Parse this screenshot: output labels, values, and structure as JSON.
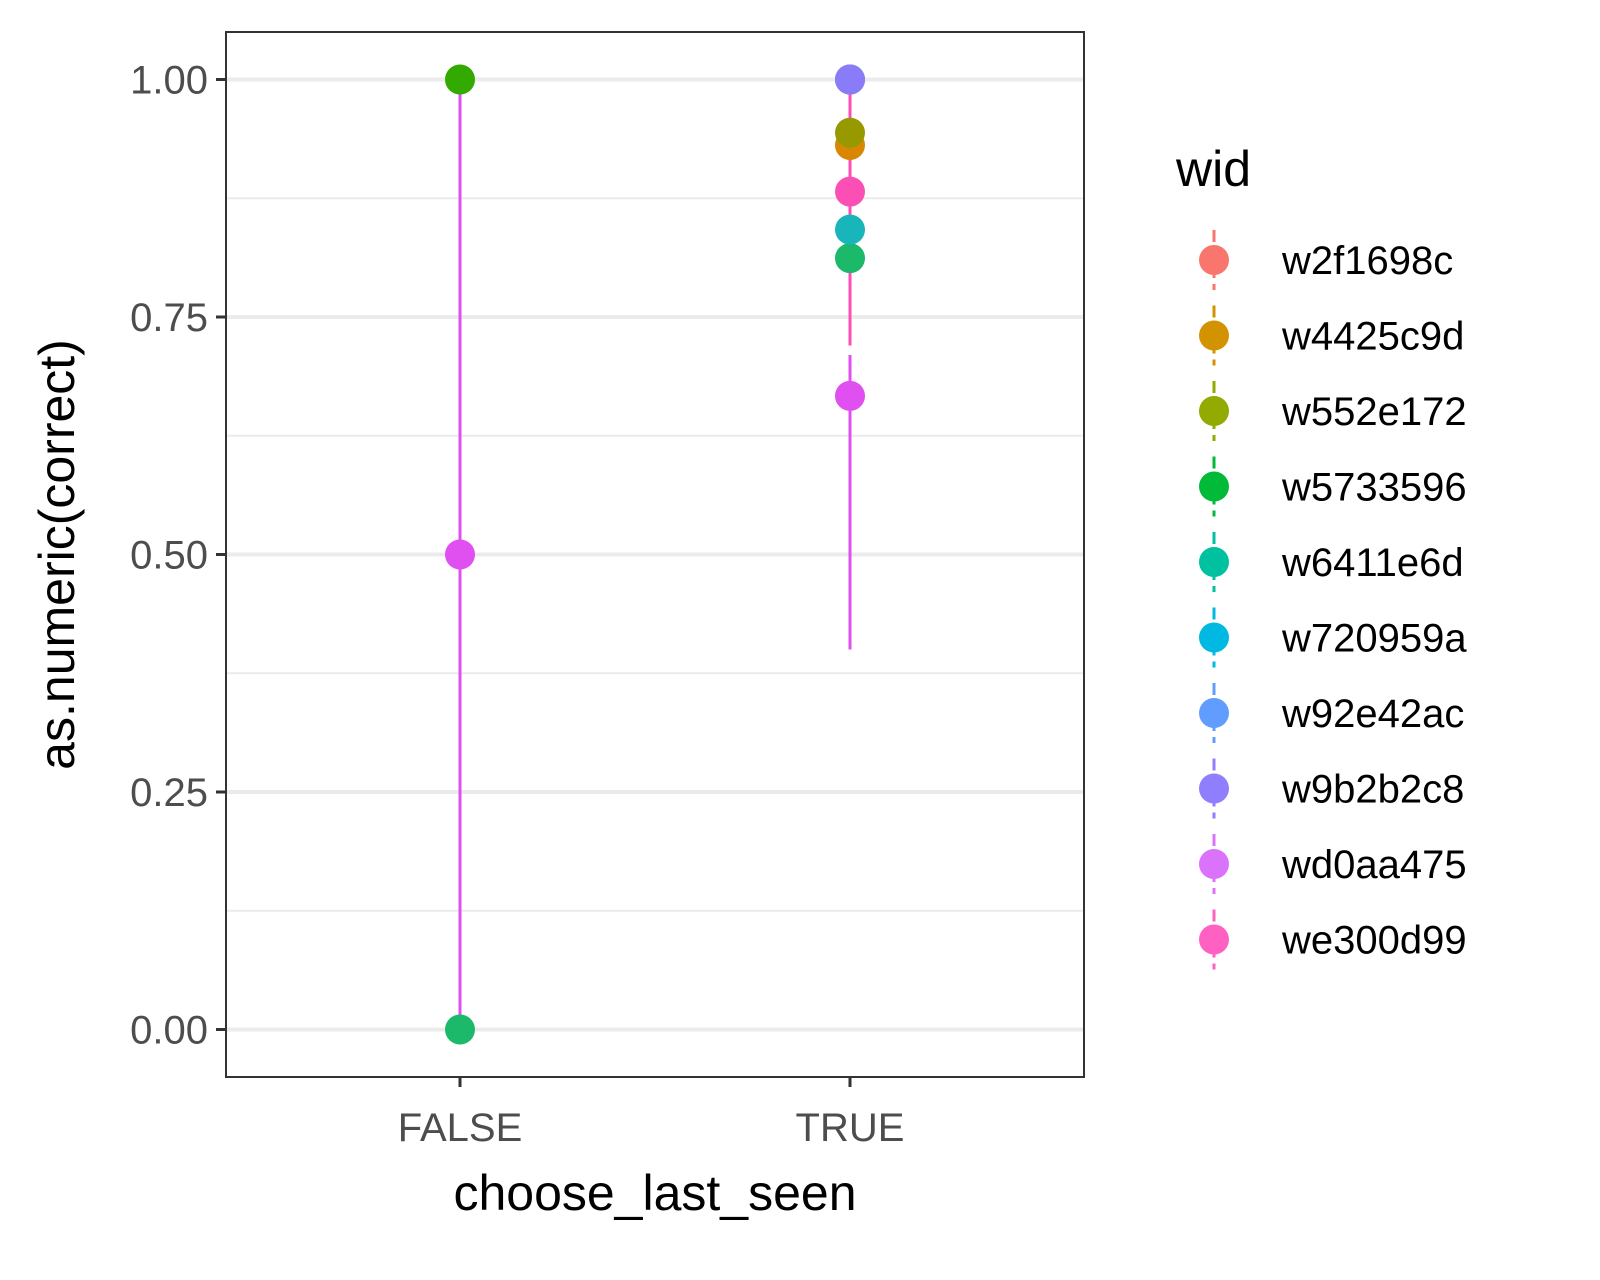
{
  "chart_data": {
    "type": "scatter",
    "title": "",
    "xlabel": "choose_last_seen",
    "ylabel": "as.numeric(correct)",
    "categories": [
      "FALSE",
      "TRUE"
    ],
    "ylim": [
      -0.05,
      1.05
    ],
    "y_ticks": [
      0.0,
      0.25,
      0.5,
      0.75,
      1.0
    ],
    "y_tick_labels": [
      "0.00",
      "0.25",
      "0.50",
      "0.75",
      "1.00"
    ],
    "grid": true,
    "legend": {
      "title": "wid",
      "placement": "right",
      "entries": [
        {
          "name": "w2f1698c",
          "color": "#F8766D"
        },
        {
          "name": "w4425c9d",
          "color": "#D39200"
        },
        {
          "name": "w552e172",
          "color": "#93AA00"
        },
        {
          "name": "w5733596",
          "color": "#00BA38"
        },
        {
          "name": "w6411e6d",
          "color": "#00C19F"
        },
        {
          "name": "w720959a",
          "color": "#00B9E3"
        },
        {
          "name": "w92e42ac",
          "color": "#619CFF"
        },
        {
          "name": "w9b2b2c8",
          "color": "#8F7FFF"
        },
        {
          "name": "wd0aa475",
          "color": "#DB72FB"
        },
        {
          "name": "we300d99",
          "color": "#FF61C3"
        }
      ]
    },
    "series": [
      {
        "name": "w6411e6d",
        "color": "#1DB96B",
        "points": [
          {
            "x": "FALSE",
            "y": 0.0
          },
          {
            "x": "TRUE",
            "y": 0.812
          }
        ]
      },
      {
        "name": "wd0aa475",
        "color": "#E04FEF",
        "points": [
          {
            "x": "FALSE",
            "y": 0.5,
            "ymin": 0.0,
            "ymax": 1.0
          },
          {
            "x": "TRUE",
            "y": 0.667,
            "ymin": 0.4,
            "ymax": 0.71
          }
        ]
      },
      {
        "name": "w5733596",
        "color": "#33AA00",
        "points": [
          {
            "x": "FALSE",
            "y": 1.0
          }
        ]
      },
      {
        "name": "w2f1698c",
        "color": "#F8766D",
        "points": [
          {
            "x": "TRUE",
            "y": 1.0
          }
        ]
      },
      {
        "name": "w92e42ac",
        "color": "#18A0F0",
        "points": [
          {
            "x": "TRUE",
            "y": 1.0
          }
        ]
      },
      {
        "name": "w9b2b2c8",
        "color": "#8A7CF8",
        "points": [
          {
            "x": "TRUE",
            "y": 1.0
          }
        ]
      },
      {
        "name": "we300d99",
        "color": "#FC4FB5",
        "points": [
          {
            "x": "TRUE",
            "y": 0.882,
            "ymin": 0.72,
            "ymax": 1.0
          }
        ]
      },
      {
        "name": "w720959a",
        "color": "#18B5BA",
        "points": [
          {
            "x": "TRUE",
            "y": 0.842
          }
        ]
      },
      {
        "name": "w4425c9d",
        "color": "#D98700",
        "points": [
          {
            "x": "TRUE",
            "y": 0.931
          }
        ]
      },
      {
        "name": "w552e172",
        "color": "#969A00",
        "points": [
          {
            "x": "TRUE",
            "y": 0.944
          }
        ]
      }
    ]
  }
}
